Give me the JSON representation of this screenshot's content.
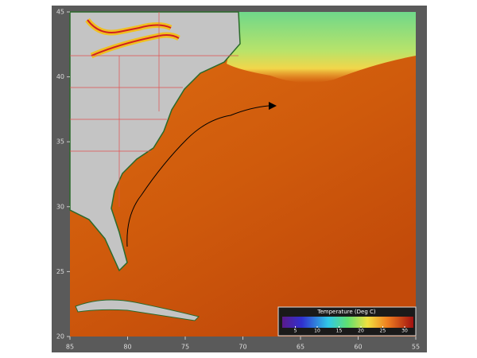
{
  "map": {
    "xlim": [
      85,
      55
    ],
    "xticks": [
      85,
      80,
      75,
      70,
      65,
      60,
      55
    ],
    "ylim": [
      20,
      45
    ],
    "yticks": [
      20,
      25,
      30,
      35,
      40,
      45
    ],
    "colorbar": {
      "title": "Temperature (Deg C)",
      "lim": [
        2,
        32
      ],
      "ticks": [
        5,
        10,
        15,
        20,
        25,
        30
      ]
    }
  }
}
